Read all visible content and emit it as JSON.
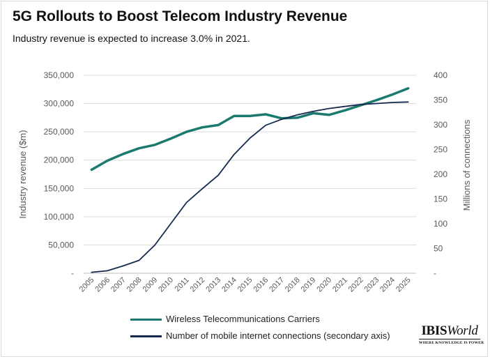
{
  "header": {
    "title": "5G Rollouts to Boost Telecom Industry Revenue",
    "subtitle": "Industry revenue is expected to increase 3.0% in 2021."
  },
  "logo": {
    "brand_bold": "IBIS",
    "brand_italic": "World",
    "tagline": "WHERE KNOWLEDGE IS POWER"
  },
  "chart_data": {
    "type": "line",
    "title": "5G Rollouts to Boost Telecom Industry Revenue",
    "x": [
      "2005",
      "2006",
      "2007",
      "2008",
      "2009",
      "2010",
      "2011",
      "2012",
      "2013",
      "2014",
      "2015",
      "2016",
      "2017",
      "2018",
      "2019",
      "2020",
      "2021",
      "2022",
      "2023",
      "2024",
      "2025"
    ],
    "xlabel": "",
    "ylabel": "Industry revenue ($m)",
    "y2label": "Millions of connections",
    "ylim": [
      0,
      350000
    ],
    "y2lim": [
      0,
      400
    ],
    "y_ticks": [
      "-",
      "50,000",
      "100,000",
      "150,000",
      "200,000",
      "250,000",
      "300,000",
      "350,000"
    ],
    "y2_ticks": [
      "-",
      "50",
      "100",
      "150",
      "200",
      "250",
      "300",
      "350",
      "400"
    ],
    "grid": true,
    "legend_position": "bottom",
    "series": [
      {
        "name": "Wireless Telecommunications Carriers",
        "axis": "left",
        "color": "#1a7a6e",
        "values": [
          183000,
          199000,
          211000,
          221000,
          227000,
          238000,
          250000,
          258000,
          262000,
          278000,
          278000,
          281000,
          274000,
          275000,
          283000,
          280000,
          288000,
          297000,
          306000,
          316000,
          327000
        ]
      },
      {
        "name": "Number of mobile internet connections (secondary axis)",
        "axis": "right",
        "color": "#13284f",
        "values": [
          2,
          5,
          15,
          26,
          57,
          100,
          143,
          171,
          198,
          240,
          273,
          299,
          311,
          320,
          327,
          333,
          337,
          341,
          343,
          345,
          346
        ]
      }
    ]
  }
}
